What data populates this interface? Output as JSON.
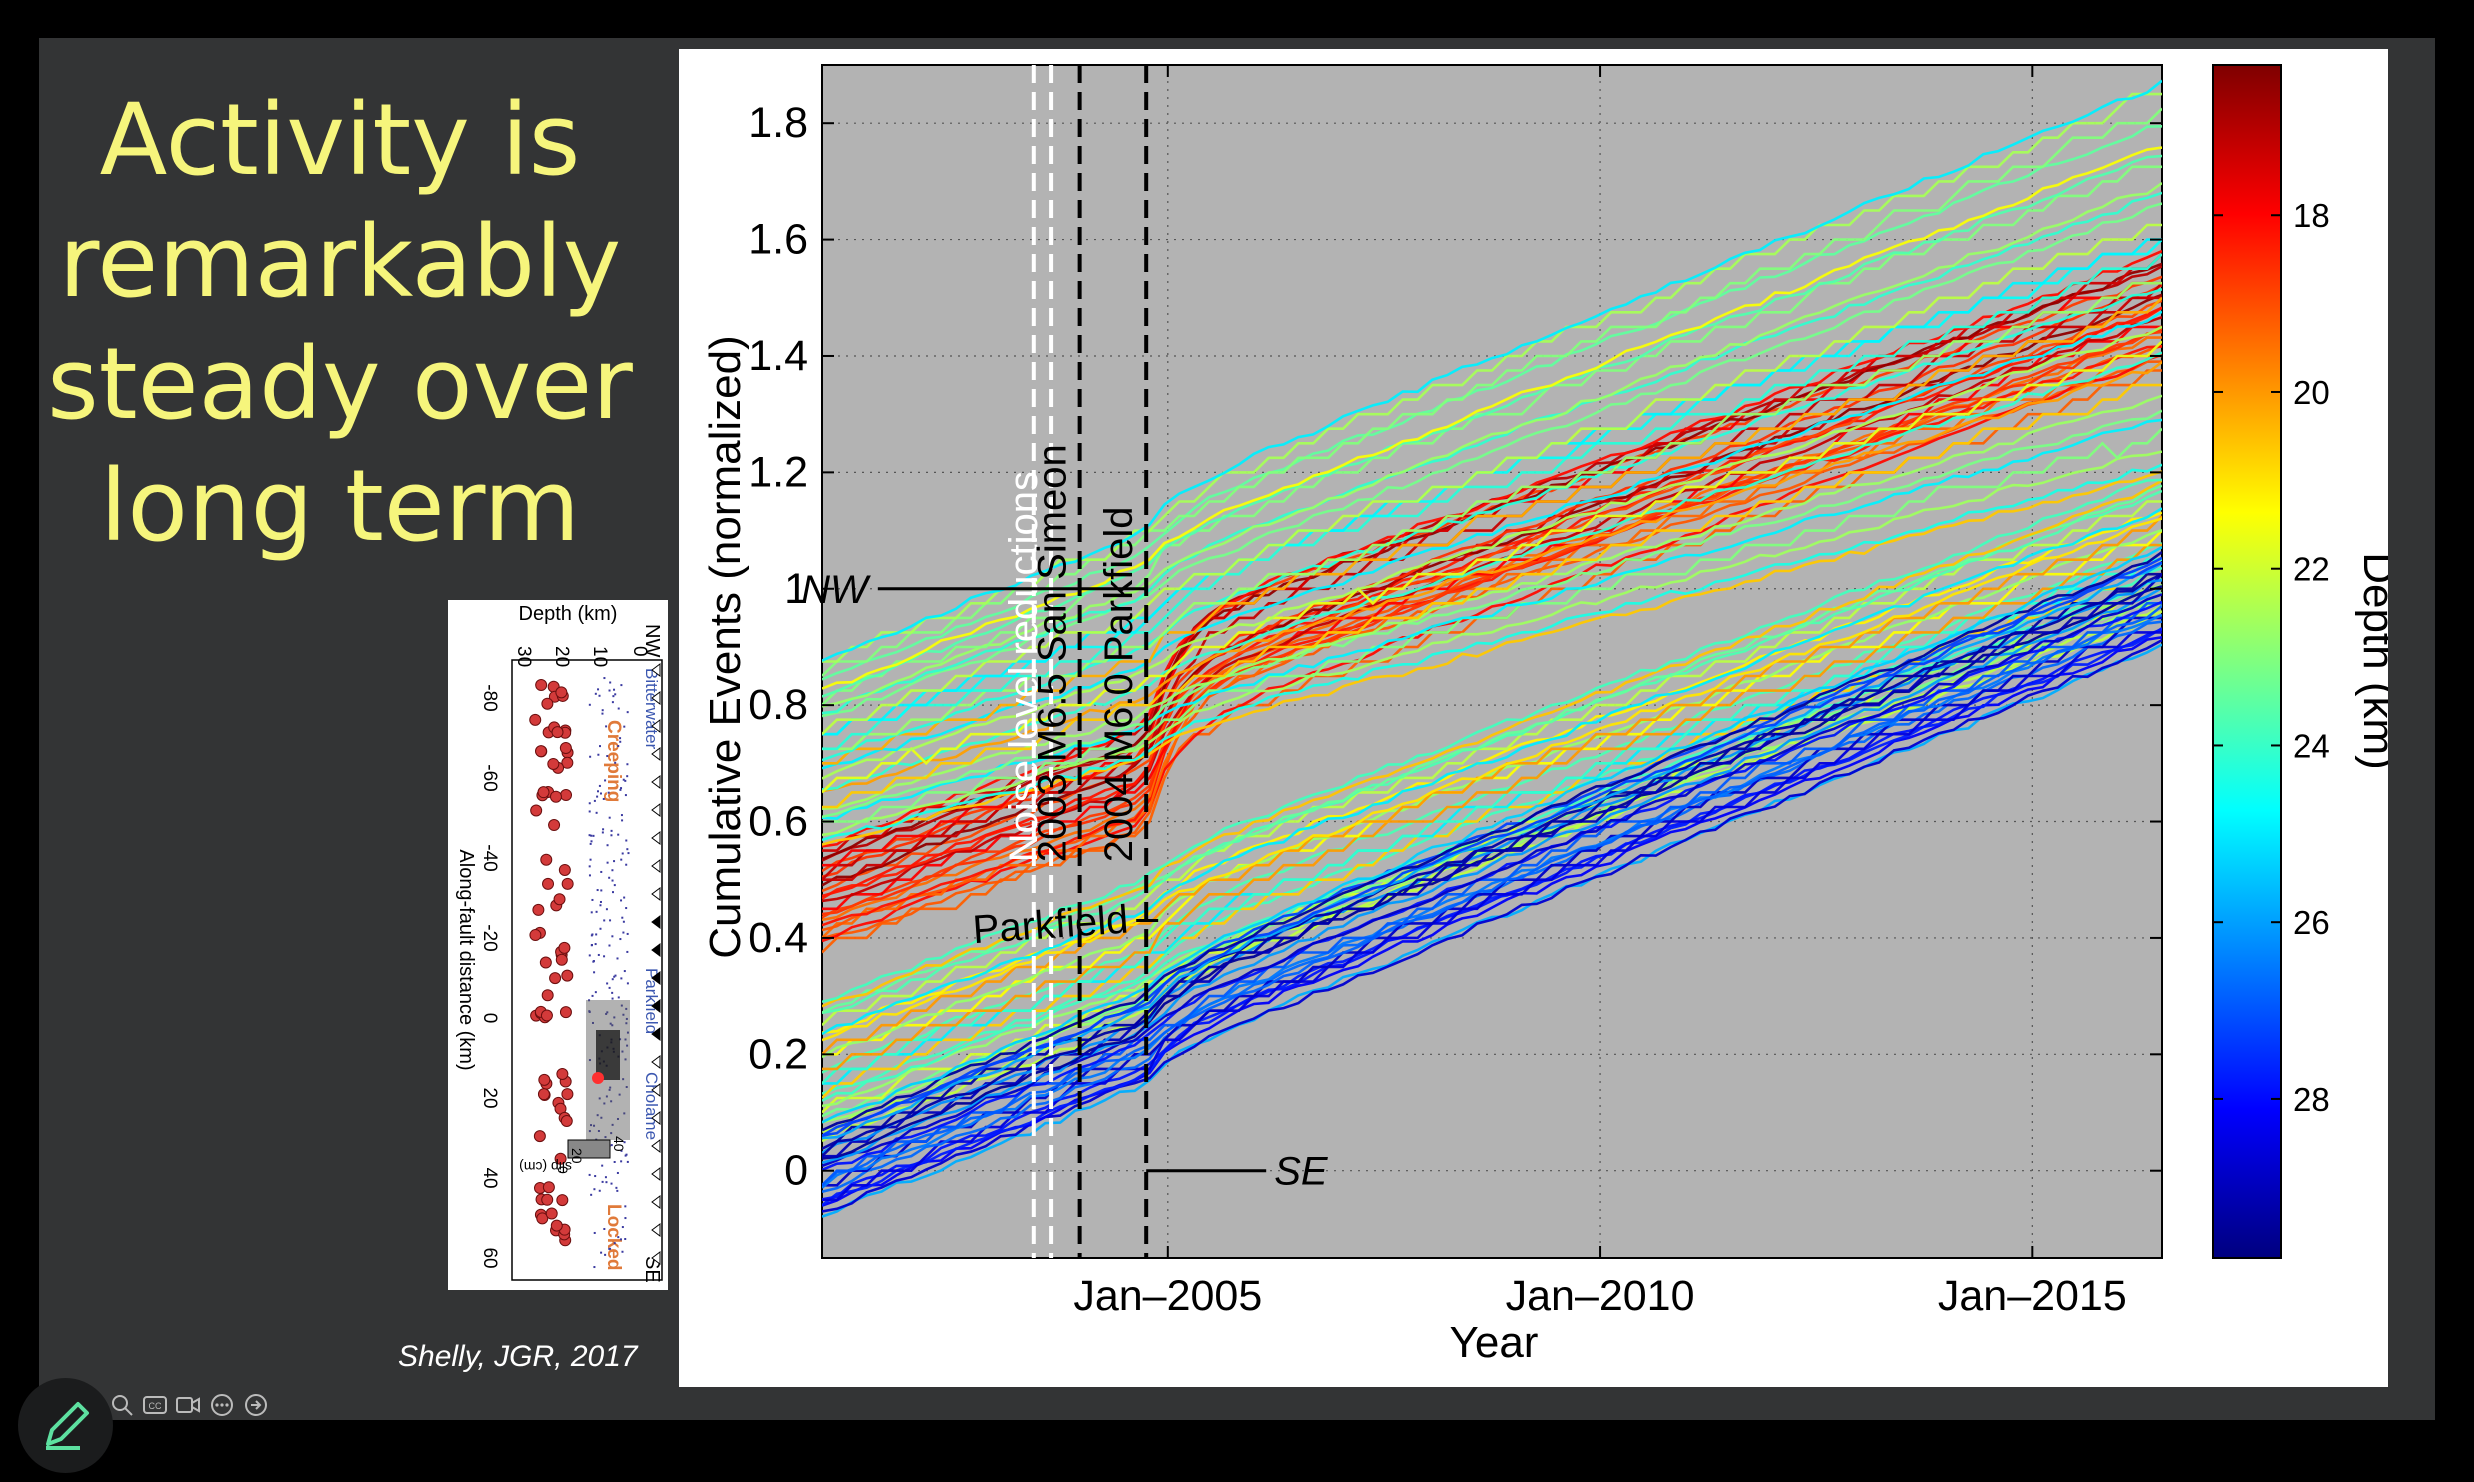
{
  "slide": {
    "title_lines": [
      "Activity is",
      "remarkably",
      "steady over",
      "long term"
    ],
    "citation": "Shelly, JGR, 2017"
  },
  "colors": {
    "slide_bg": "#333435",
    "title": "#f6f57c",
    "plot_bg": "#b3b3b3"
  },
  "chart_data": {
    "type": "line",
    "xlabel": "Year",
    "ylabel": "Cumulative Events (normalized)",
    "x_ticks": [
      "Jan–2005",
      "Jan–2010",
      "Jan–2015"
    ],
    "x_tick_values": [
      2005.0,
      2010.0,
      2015.0
    ],
    "xlim": [
      2001.0,
      2016.5
    ],
    "y_ticks": [
      "0",
      "0.2",
      "0.4",
      "0.6",
      "0.8",
      "1",
      "1.2",
      "1.4",
      "1.6",
      "1.8"
    ],
    "y_tick_values": [
      0,
      0.2,
      0.4,
      0.6,
      0.8,
      1.0,
      1.2,
      1.4,
      1.6,
      1.8
    ],
    "ylim": [
      -0.15,
      1.9
    ],
    "grid": true,
    "event_lines": [
      {
        "label": "Noise level reductions",
        "x": [
          2003.45,
          2003.65
        ],
        "color": "#ffffff"
      },
      {
        "label": "2003 M6.5 San Simeon",
        "x": [
          2003.98
        ],
        "color": "#000000"
      },
      {
        "label": "2004 M6.0 Parkfield",
        "x": [
          2004.75
        ],
        "color": "#000000"
      }
    ],
    "annotations": [
      {
        "text": "NW",
        "x": 2004.75,
        "y": 1.0
      },
      {
        "text": "Parkfield",
        "x": 2004.75,
        "y": 0.43
      },
      {
        "text": "SE",
        "x": 2004.75,
        "y": 0.0
      }
    ],
    "colorbar": {
      "label": "Depth (km)",
      "ticks": [
        "18",
        "20",
        "22",
        "24",
        "26",
        "28"
      ],
      "tick_values": [
        18,
        20,
        22,
        24,
        26,
        28
      ],
      "range": [
        16.3,
        29.8
      ],
      "colormap": "jet (reversed: shallow = red, deep = blue)"
    },
    "series_groups": [
      {
        "description": "NW group, shallow",
        "depth_range": [
          16.5,
          19.5
        ],
        "y_start": [
          0.38,
          0.56
        ],
        "y_end": [
          1.38,
          1.58
        ]
      },
      {
        "description": "NW group, intermediate",
        "depth_range": [
          19.5,
          25.0
        ],
        "y_start": [
          0.55,
          0.88
        ],
        "y_end": [
          1.18,
          1.88
        ]
      },
      {
        "description": "SE group, intermediate",
        "depth_range": [
          20.0,
          25.0
        ],
        "y_start": [
          0.05,
          0.3
        ],
        "y_end": [
          0.95,
          1.2
        ]
      },
      {
        "description": "SE group, deep",
        "depth_range": [
          25.0,
          29.5
        ],
        "y_start": [
          -0.08,
          0.08
        ],
        "y_end": [
          0.9,
          1.07
        ]
      }
    ]
  },
  "inset": {
    "top_label": "Depth (km)",
    "depth_ticks": [
      "30",
      "20",
      "10",
      "0"
    ],
    "distance_label": "Along-fault distance (km)",
    "distance_ticks": [
      "-80",
      "-60",
      "-40",
      "-20",
      "0",
      "20",
      "40",
      "60"
    ],
    "locations": [
      "Bitterwater",
      "Parkfield",
      "Cholame"
    ],
    "regions": [
      "Creeping",
      "Locked"
    ],
    "end_labels": [
      "NW",
      "SE"
    ],
    "slip_label": "slip (cm)",
    "slip_ticks": [
      "0",
      "20",
      "40"
    ]
  },
  "controls": [
    "zoom-icon",
    "captions-icon",
    "camera-icon",
    "more-icon",
    "next-icon",
    "edit-icon"
  ]
}
